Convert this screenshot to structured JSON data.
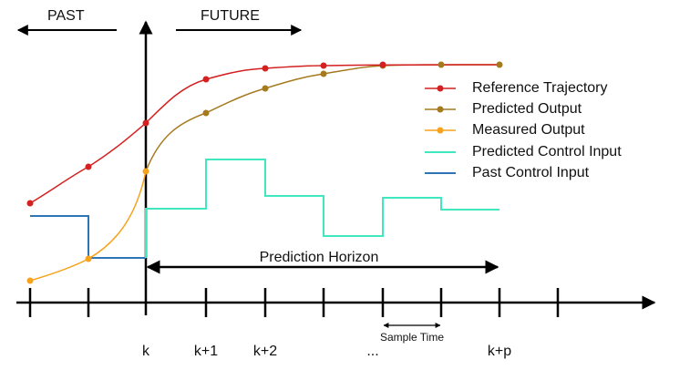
{
  "header": {
    "past": "PAST",
    "future": "FUTURE"
  },
  "legend": [
    "Reference Trajectory",
    "Predicted Output",
    "Measured Output",
    "Predicted Control Input",
    "Past Control Input"
  ],
  "horizon_label": "Prediction Horizon",
  "sample_time_label": "Sample Time",
  "x_labels": [
    "k",
    "k+1",
    "k+2",
    "...",
    "k+p"
  ]
}
